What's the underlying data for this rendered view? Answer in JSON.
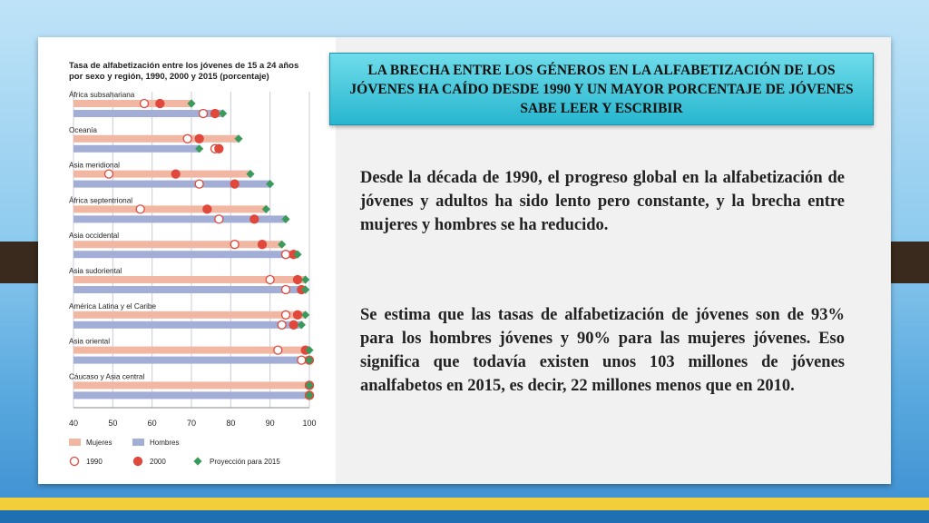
{
  "slide": {
    "title": "LA BRECHA ENTRE LOS GÉNEROS EN LA ALFABETIZACIÓN DE LOS JÓVENES HA CAÍDO DESDE 1990 Y UN MAYOR PORCENTAJE DE JÓVENES SABE LEER Y ESCRIBIR",
    "paragraph1": "Desde la década de 1990, el progreso global en la alfabetización de jóvenes y adultos ha sido lento pero constante, y la brecha entre mujeres y hombres se ha reducido.",
    "paragraph2": "Se estima que las tasas de alfabetización de jóvenes son de 93% para los hombres jóvenes y 90% para las mujeres jóvenes. Eso significa que todavía existen unos 103 millones de jóvenes analfabetos en 2015, es decir, 22 millones menos que en 2010."
  },
  "colors": {
    "mujeres_bar": "#f2b7a3",
    "hombres_bar": "#a3aed6",
    "marker_red": "#e0483b",
    "marker_green": "#3a9a5b",
    "title_box": "#3cc4da"
  },
  "chart_data": {
    "type": "bar",
    "orientation": "horizontal",
    "title_line1": "Tasa de alfabetización entre los jóvenes de 15 a 24 años",
    "title_line2": "por sexo y región, 1990, 2000 y 2015 (porcentaje)",
    "xlim": [
      40,
      100
    ],
    "xticks": [
      "40",
      "50",
      "60",
      "70",
      "80",
      "90",
      "100"
    ],
    "grid": true,
    "legend_position": "bottom",
    "legend": {
      "mujeres": "Mujeres",
      "hombres": "Hombres",
      "y1990": "1990",
      "y2000": "2000",
      "y2015": "Proyección para 2015"
    },
    "series_bar_value": "2015 projection",
    "regions": [
      {
        "name": "África subsahariana",
        "mujeres": {
          "1990": 58,
          "2000": 62,
          "2015": 70
        },
        "hombres": {
          "1990": 73,
          "2000": 76,
          "2015": 78
        }
      },
      {
        "name": "Oceanía",
        "mujeres": {
          "1990": 69,
          "2000": 72,
          "2015": 82
        },
        "hombres": {
          "1990": 76,
          "2000": 77,
          "2015": 72
        }
      },
      {
        "name": "Asia meridional",
        "mujeres": {
          "1990": 49,
          "2000": 66,
          "2015": 85
        },
        "hombres": {
          "1990": 72,
          "2000": 81,
          "2015": 90
        }
      },
      {
        "name": "África septentrional",
        "mujeres": {
          "1990": 57,
          "2000": 74,
          "2015": 89
        },
        "hombres": {
          "1990": 77,
          "2000": 86,
          "2015": 94
        }
      },
      {
        "name": "Asia occidental",
        "mujeres": {
          "1990": 81,
          "2000": 88,
          "2015": 93
        },
        "hombres": {
          "1990": 94,
          "2000": 96,
          "2015": 97
        }
      },
      {
        "name": "Asia sudoriental",
        "mujeres": {
          "1990": 90,
          "2000": 97,
          "2015": 99
        },
        "hombres": {
          "1990": 94,
          "2000": 98,
          "2015": 99
        }
      },
      {
        "name": "América Latina y el Caribe",
        "mujeres": {
          "1990": 94,
          "2000": 97,
          "2015": 99
        },
        "hombres": {
          "1990": 93,
          "2000": 96,
          "2015": 98
        }
      },
      {
        "name": "Asia oriental",
        "mujeres": {
          "1990": 92,
          "2000": 99,
          "2015": 100
        },
        "hombres": {
          "1990": 98,
          "2000": 100,
          "2015": 100
        }
      },
      {
        "name": "Cáucaso y Asia central",
        "mujeres": {
          "1990": 100,
          "2000": 100,
          "2015": 100
        },
        "hombres": {
          "1990": 100,
          "2000": 100,
          "2015": 100
        }
      }
    ]
  }
}
